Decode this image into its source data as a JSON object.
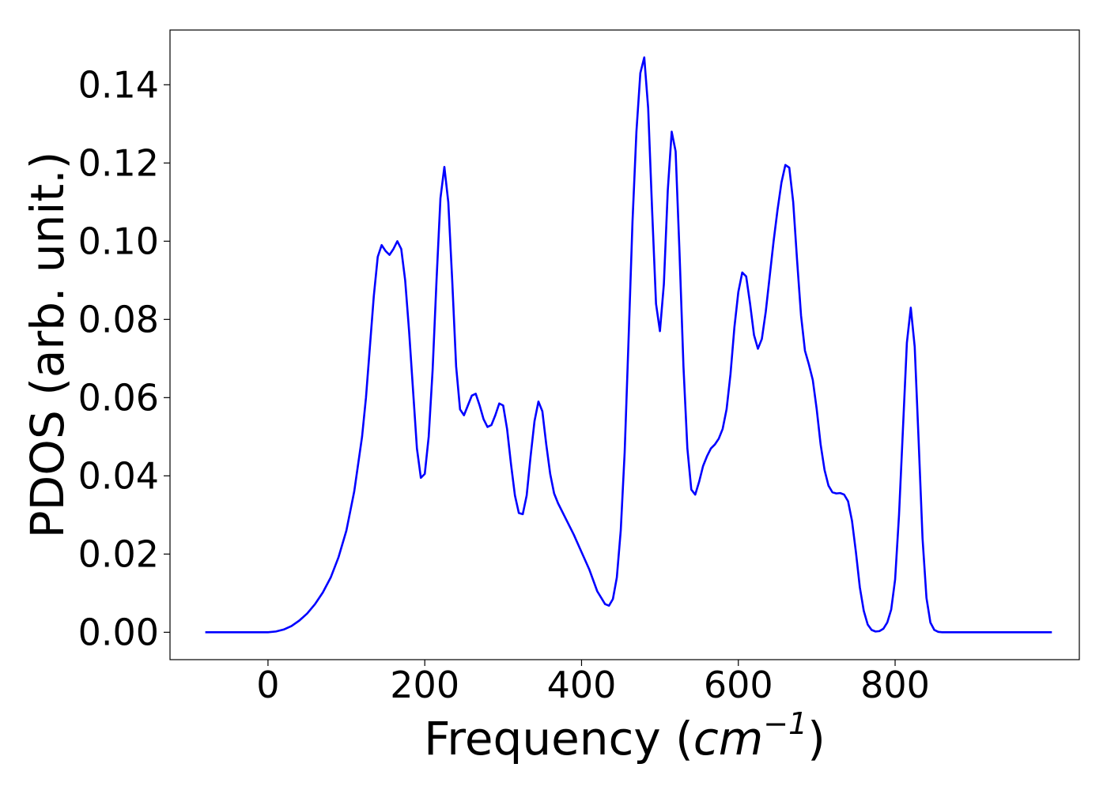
{
  "chart_data": {
    "type": "line",
    "title": "",
    "xlabel": {
      "prefix": "Frequency (",
      "unit_base": "cm",
      "unit_exponent": "−1",
      "suffix": ")"
    },
    "ylabel": "PDOS (arb. unit.)",
    "xlim": [
      -125,
      1035
    ],
    "ylim": [
      -0.007,
      0.154
    ],
    "xticks": [
      0,
      200,
      400,
      600,
      800
    ],
    "xtick_labels": [
      "0",
      "200",
      "400",
      "600",
      "800"
    ],
    "yticks": [
      0.0,
      0.02,
      0.04,
      0.06,
      0.08,
      0.1,
      0.12,
      0.14
    ],
    "ytick_labels": [
      "0.00",
      "0.02",
      "0.04",
      "0.06",
      "0.08",
      "0.10",
      "0.12",
      "0.14"
    ],
    "grid": false,
    "series": [
      {
        "color": "#0000ff",
        "points": [
          [
            -80,
            0.0
          ],
          [
            -40,
            0.0
          ],
          [
            0,
            0.0
          ],
          [
            10,
            0.0002
          ],
          [
            20,
            0.0007
          ],
          [
            30,
            0.0016
          ],
          [
            40,
            0.003
          ],
          [
            50,
            0.0048
          ],
          [
            60,
            0.0072
          ],
          [
            70,
            0.0102
          ],
          [
            80,
            0.014
          ],
          [
            90,
            0.0192
          ],
          [
            100,
            0.026
          ],
          [
            110,
            0.036
          ],
          [
            120,
            0.05
          ],
          [
            125,
            0.06
          ],
          [
            130,
            0.073
          ],
          [
            135,
            0.086
          ],
          [
            140,
            0.096
          ],
          [
            145,
            0.099
          ],
          [
            150,
            0.0975
          ],
          [
            155,
            0.0965
          ],
          [
            160,
            0.098
          ],
          [
            165,
            0.1
          ],
          [
            170,
            0.098
          ],
          [
            175,
            0.09
          ],
          [
            180,
            0.077
          ],
          [
            185,
            0.062
          ],
          [
            190,
            0.047
          ],
          [
            195,
            0.0395
          ],
          [
            200,
            0.0405
          ],
          [
            205,
            0.05
          ],
          [
            210,
            0.067
          ],
          [
            215,
            0.09
          ],
          [
            220,
            0.111
          ],
          [
            225,
            0.119
          ],
          [
            230,
            0.11
          ],
          [
            235,
            0.09
          ],
          [
            240,
            0.068
          ],
          [
            245,
            0.057
          ],
          [
            250,
            0.0555
          ],
          [
            255,
            0.058
          ],
          [
            260,
            0.0605
          ],
          [
            265,
            0.061
          ],
          [
            270,
            0.058
          ],
          [
            275,
            0.0545
          ],
          [
            280,
            0.0525
          ],
          [
            285,
            0.053
          ],
          [
            290,
            0.0555
          ],
          [
            295,
            0.0585
          ],
          [
            300,
            0.058
          ],
          [
            305,
            0.052
          ],
          [
            310,
            0.043
          ],
          [
            315,
            0.035
          ],
          [
            320,
            0.0305
          ],
          [
            325,
            0.0302
          ],
          [
            330,
            0.035
          ],
          [
            335,
            0.045
          ],
          [
            340,
            0.054
          ],
          [
            345,
            0.059
          ],
          [
            350,
            0.0565
          ],
          [
            355,
            0.048
          ],
          [
            360,
            0.0405
          ],
          [
            365,
            0.0355
          ],
          [
            370,
            0.033
          ],
          [
            380,
            0.029
          ],
          [
            390,
            0.025
          ],
          [
            400,
            0.0205
          ],
          [
            410,
            0.016
          ],
          [
            420,
            0.0105
          ],
          [
            430,
            0.0072
          ],
          [
            435,
            0.0068
          ],
          [
            440,
            0.0085
          ],
          [
            445,
            0.014
          ],
          [
            450,
            0.026
          ],
          [
            455,
            0.046
          ],
          [
            460,
            0.075
          ],
          [
            465,
            0.105
          ],
          [
            470,
            0.128
          ],
          [
            475,
            0.143
          ],
          [
            480,
            0.147
          ],
          [
            485,
            0.134
          ],
          [
            490,
            0.108
          ],
          [
            495,
            0.084
          ],
          [
            500,
            0.077
          ],
          [
            505,
            0.089
          ],
          [
            510,
            0.113
          ],
          [
            515,
            0.128
          ],
          [
            520,
            0.123
          ],
          [
            525,
            0.097
          ],
          [
            530,
            0.068
          ],
          [
            535,
            0.047
          ],
          [
            540,
            0.0365
          ],
          [
            545,
            0.0352
          ],
          [
            550,
            0.0385
          ],
          [
            555,
            0.0425
          ],
          [
            560,
            0.045
          ],
          [
            565,
            0.047
          ],
          [
            570,
            0.048
          ],
          [
            575,
            0.0495
          ],
          [
            580,
            0.052
          ],
          [
            585,
            0.057
          ],
          [
            590,
            0.066
          ],
          [
            595,
            0.078
          ],
          [
            600,
            0.087
          ],
          [
            605,
            0.092
          ],
          [
            610,
            0.091
          ],
          [
            615,
            0.084
          ],
          [
            620,
            0.076
          ],
          [
            625,
            0.0725
          ],
          [
            630,
            0.075
          ],
          [
            635,
            0.082
          ],
          [
            640,
            0.091
          ],
          [
            645,
            0.1
          ],
          [
            650,
            0.108
          ],
          [
            655,
            0.115
          ],
          [
            660,
            0.1195
          ],
          [
            665,
            0.1188
          ],
          [
            670,
            0.11
          ],
          [
            675,
            0.095
          ],
          [
            680,
            0.081
          ],
          [
            685,
            0.072
          ],
          [
            690,
            0.0685
          ],
          [
            695,
            0.0645
          ],
          [
            700,
            0.057
          ],
          [
            705,
            0.048
          ],
          [
            710,
            0.0415
          ],
          [
            715,
            0.0375
          ],
          [
            720,
            0.0358
          ],
          [
            725,
            0.0355
          ],
          [
            730,
            0.0356
          ],
          [
            735,
            0.0352
          ],
          [
            740,
            0.0335
          ],
          [
            745,
            0.0285
          ],
          [
            750,
            0.0205
          ],
          [
            755,
            0.0115
          ],
          [
            760,
            0.0055
          ],
          [
            765,
            0.002
          ],
          [
            770,
            0.0006
          ],
          [
            775,
            0.0002
          ],
          [
            780,
            0.0003
          ],
          [
            785,
            0.0009
          ],
          [
            790,
            0.0025
          ],
          [
            795,
            0.0058
          ],
          [
            800,
            0.0135
          ],
          [
            805,
            0.03
          ],
          [
            810,
            0.052
          ],
          [
            815,
            0.074
          ],
          [
            820,
            0.083
          ],
          [
            825,
            0.073
          ],
          [
            830,
            0.049
          ],
          [
            835,
            0.024
          ],
          [
            840,
            0.0088
          ],
          [
            845,
            0.0025
          ],
          [
            850,
            0.0006
          ],
          [
            855,
            0.0001
          ],
          [
            860,
            0.0
          ],
          [
            880,
            0.0
          ],
          [
            900,
            0.0
          ],
          [
            950,
            0.0
          ],
          [
            1000,
            0.0
          ]
        ]
      }
    ]
  }
}
